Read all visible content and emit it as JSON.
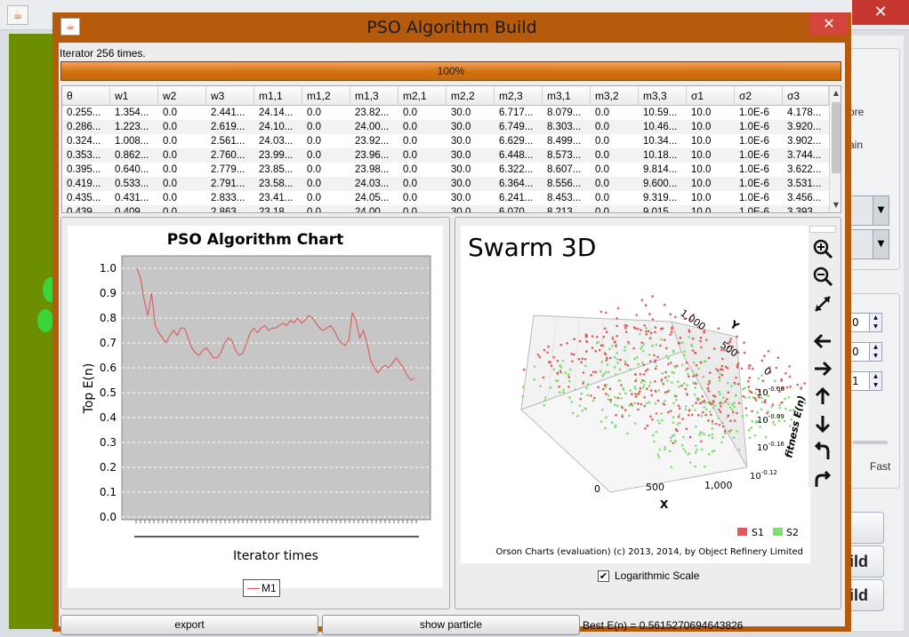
{
  "dialog": {
    "title": "PSO Algorithm Build",
    "status": "Iterator 256 times.",
    "progress_label": "100%",
    "progress_value": 1.0
  },
  "table": {
    "columns": [
      "θ",
      "w1",
      "w2",
      "w3",
      "m1,1",
      "m1,2",
      "m1,3",
      "m2,1",
      "m2,2",
      "m2,3",
      "m3,1",
      "m3,2",
      "m3,3",
      "σ1",
      "σ2",
      "σ3"
    ],
    "rows": [
      [
        "0.255...",
        "1.354...",
        "0.0",
        "2.441...",
        "24.14...",
        "0.0",
        "23.82...",
        "0.0",
        "30.0",
        "6.717...",
        "8.079...",
        "0.0",
        "10.59...",
        "10.0",
        "1.0E-6",
        "4.178..."
      ],
      [
        "0.286...",
        "1.223...",
        "0.0",
        "2.619...",
        "24.10...",
        "0.0",
        "24.00...",
        "0.0",
        "30.0",
        "6.749...",
        "8.303...",
        "0.0",
        "10.46...",
        "10.0",
        "1.0E-6",
        "3.920..."
      ],
      [
        "0.324...",
        "1.008...",
        "0.0",
        "2.561...",
        "24.03...",
        "0.0",
        "23.92...",
        "0.0",
        "30.0",
        "6.629...",
        "8.499...",
        "0.0",
        "10.34...",
        "10.0",
        "1.0E-6",
        "3.902..."
      ],
      [
        "0.353...",
        "0.862...",
        "0.0",
        "2.760...",
        "23.99...",
        "0.0",
        "23.96...",
        "0.0",
        "30.0",
        "6.448...",
        "8.573...",
        "0.0",
        "10.18...",
        "10.0",
        "1.0E-6",
        "3.744..."
      ],
      [
        "0.395...",
        "0.640...",
        "0.0",
        "2.779...",
        "23.85...",
        "0.0",
        "23.98...",
        "0.0",
        "30.0",
        "6.322...",
        "8.607...",
        "0.0",
        "9.814...",
        "10.0",
        "1.0E-6",
        "3.622..."
      ],
      [
        "0.419...",
        "0.533...",
        "0.0",
        "2.791...",
        "23.58...",
        "0.0",
        "24.03...",
        "0.0",
        "30.0",
        "6.364...",
        "8.556...",
        "0.0",
        "9.600...",
        "10.0",
        "1.0E-6",
        "3.531..."
      ],
      [
        "0.435...",
        "0.431...",
        "0.0",
        "2.833...",
        "23.41...",
        "0.0",
        "24.05...",
        "0.0",
        "30.0",
        "6.241...",
        "8.453...",
        "0.0",
        "9.319...",
        "10.0",
        "1.0E-6",
        "3.456..."
      ],
      [
        "0.439...",
        "0.409...",
        "0.0",
        "2.863...",
        "23.18...",
        "0.0",
        "24.00...",
        "0.0",
        "30.0",
        "6.070...",
        "8.213...",
        "0.0",
        "9.015...",
        "10.0",
        "1.0E-6",
        "3.393..."
      ]
    ]
  },
  "chart_data": [
    {
      "type": "line",
      "title": "PSO Algorithm Chart",
      "xlabel": "Iterator times",
      "ylabel": "Top E(n)",
      "ylim": [
        0.0,
        1.0
      ],
      "yticks": [
        "0.0",
        "0.1",
        "0.2",
        "0.3",
        "0.4",
        "0.5",
        "0.6",
        "0.7",
        "0.8",
        "0.9",
        "1.0"
      ],
      "grid": true,
      "legend_position": "bottom",
      "series": [
        {
          "name": "M1",
          "color": "#e0504f",
          "values": [
            1.0,
            0.96,
            0.87,
            0.81,
            0.9,
            0.77,
            0.74,
            0.72,
            0.7,
            0.73,
            0.75,
            0.73,
            0.76,
            0.76,
            0.72,
            0.68,
            0.66,
            0.65,
            0.67,
            0.68,
            0.66,
            0.64,
            0.64,
            0.66,
            0.7,
            0.72,
            0.71,
            0.67,
            0.65,
            0.66,
            0.7,
            0.74,
            0.76,
            0.74,
            0.76,
            0.77,
            0.75,
            0.76,
            0.76,
            0.77,
            0.78,
            0.77,
            0.79,
            0.78,
            0.8,
            0.78,
            0.79,
            0.81,
            0.8,
            0.78,
            0.76,
            0.75,
            0.76,
            0.77,
            0.75,
            0.72,
            0.7,
            0.69,
            0.71,
            0.82,
            0.79,
            0.72,
            0.75,
            0.7,
            0.63,
            0.6,
            0.58,
            0.6,
            0.61,
            0.6,
            0.62,
            0.64,
            0.62,
            0.6,
            0.57,
            0.55,
            0.56
          ]
        }
      ]
    },
    {
      "type": "scatter",
      "title": "Swarm 3D",
      "xlabel": "X",
      "ylabel": "Y",
      "zlabel": "fitness E(n)",
      "x_ticks": [
        "0",
        "500",
        "1,000"
      ],
      "y_ticks": [
        "0",
        "500",
        "1,000"
      ],
      "z_ticks": [
        "10^-0.06",
        "10^-0.09",
        "10^-0.16",
        "10^-0.12"
      ],
      "log_scale": true,
      "legend_position": "bottom-right",
      "series": [
        {
          "name": "S1",
          "color": "#e05a5a"
        },
        {
          "name": "S2",
          "color": "#7fdc6e"
        }
      ],
      "credit": "Orson Charts (evaluation) (c) 2013, 2014, by Object Refinery Limited"
    }
  ],
  "controls": {
    "log_scale_label": "Logarithmic Scale",
    "log_scale_checked": true,
    "export_label": "export",
    "show_particle_label": "show particle",
    "best_label": "Best E(n) = 0.5615270694643826"
  },
  "background_window": {
    "title": "",
    "right_panel": {
      "text_1": "ore",
      "text_2": "ain",
      "spin_1": "0",
      "spin_2": "0",
      "spin_3": "1",
      "speed_label": "Fast",
      "button_1": "ild",
      "button_2": "ild"
    }
  },
  "icons": {
    "zoom_in": "zoom-in-icon",
    "zoom_out": "zoom-out-icon",
    "fit": "fit-to-window-icon",
    "left": "arrow-left-icon",
    "right": "arrow-right-icon",
    "up": "arrow-up-icon",
    "down": "arrow-down-icon",
    "roll_left": "rotate-left-icon",
    "roll_right": "rotate-right-icon"
  }
}
